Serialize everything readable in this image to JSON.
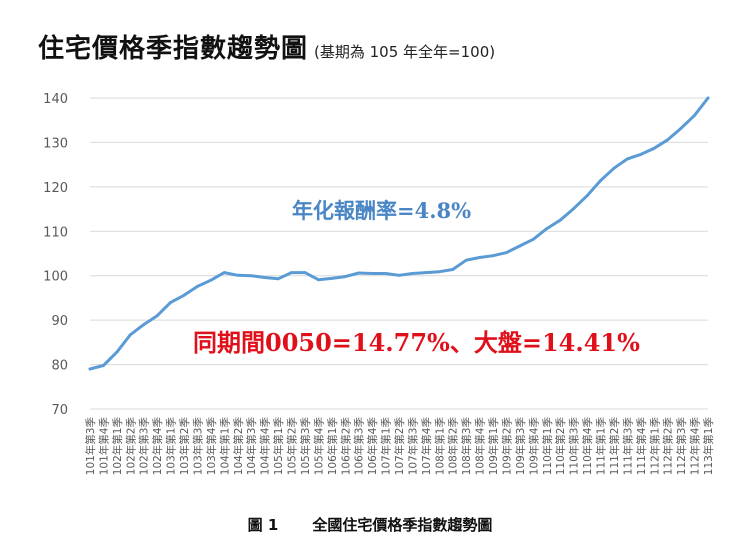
{
  "chart_data": {
    "type": "line",
    "title": "住宅價格季指數趨勢圖",
    "subtitle": "(基期為 105 年全年=100)",
    "xlabel": "",
    "ylabel": "",
    "ylim": [
      70,
      140
    ],
    "yticks": [
      70,
      80,
      90,
      100,
      110,
      120,
      130,
      140
    ],
    "grid": true,
    "series_color": "#5b9bd5",
    "annotation_colors": {
      "blue": "#4a86c5",
      "red": "#e0101b"
    },
    "annotations": [
      {
        "id": "annual-return",
        "text": "年化報酬率=4.8%"
      },
      {
        "id": "same-period",
        "text": "同期間0050=14.77%、大盤=14.41%"
      }
    ],
    "categories": [
      "101年第3季",
      "101年第4季",
      "102年第1季",
      "102年第2季",
      "102年第3季",
      "102年第4季",
      "103年第1季",
      "103年第2季",
      "103年第3季",
      "103年第4季",
      "104年第1季",
      "104年第2季",
      "104年第3季",
      "104年第4季",
      "105年第1季",
      "105年第2季",
      "105年第3季",
      "105年第4季",
      "106年第1季",
      "106年第2季",
      "106年第3季",
      "106年第4季",
      "107年第1季",
      "107年第2季",
      "107年第3季",
      "107年第4季",
      "108年第1季",
      "108年第2季",
      "108年第3季",
      "108年第4季",
      "109年第1季",
      "109年第2季",
      "109年第3季",
      "109年第4季",
      "110年第1季",
      "110年第2季",
      "110年第3季",
      "110年第4季",
      "111年第1季",
      "111年第2季",
      "111年第3季",
      "111年第4季",
      "112年第1季",
      "112年第2季",
      "112年第3季",
      "112年第4季",
      "113年第1季"
    ],
    "series": [
      {
        "name": "住宅價格季指數",
        "values": [
          79.0,
          79.8,
          82.8,
          86.7,
          89.0,
          91.0,
          94.0,
          95.6,
          97.6,
          99.0,
          100.7,
          100.1,
          100.0,
          99.6,
          99.3,
          100.7,
          100.7,
          99.1,
          99.4,
          99.8,
          100.6,
          100.5,
          100.5,
          100.1,
          100.5,
          100.7,
          100.9,
          101.4,
          103.5,
          104.1,
          104.5,
          105.2,
          106.7,
          108.2,
          110.6,
          112.5,
          115.1,
          118.0,
          121.4,
          124.2,
          126.3,
          127.3,
          128.7,
          130.6,
          133.2,
          136.1,
          140.0
        ]
      }
    ]
  },
  "caption": {
    "figure_number": "圖 1",
    "text": "全國住宅價格季指數趨勢圖"
  }
}
